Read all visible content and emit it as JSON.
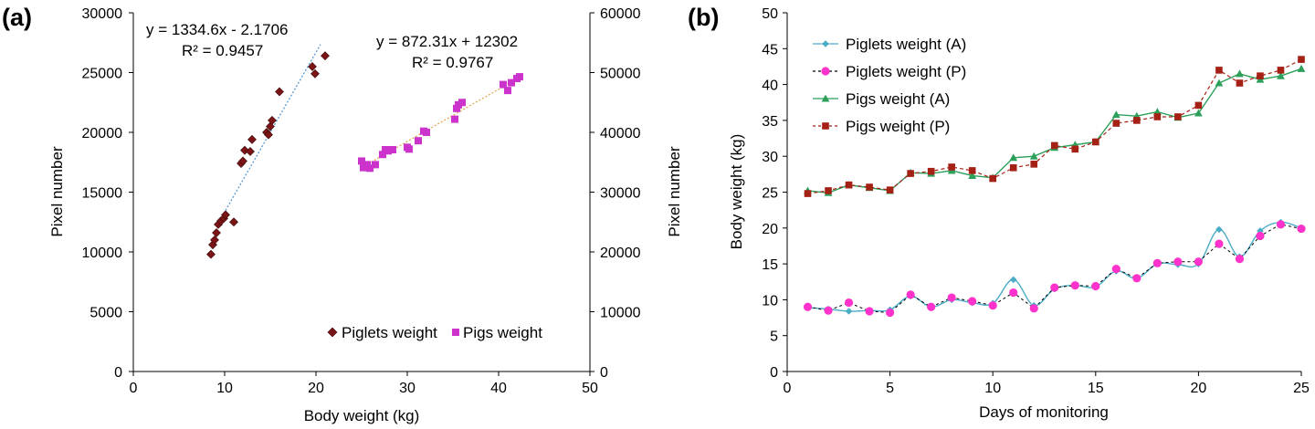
{
  "chart_data": [
    {
      "panel_label": "(a)",
      "type": "scatter",
      "xlabel": "Body weight (kg)",
      "ylabel_left": "Pixel number",
      "ylabel_right": "Pixel number",
      "xlim": [
        0,
        50
      ],
      "ylim_left": [
        0,
        30000
      ],
      "ylim_right": [
        0,
        60000
      ],
      "x_ticks": [
        "0",
        "10",
        "20",
        "30",
        "40",
        "50"
      ],
      "y_left_ticks": [
        "0",
        "5000",
        "10000",
        "15000",
        "20000",
        "25000",
        "30000"
      ],
      "y_right_ticks": [
        "0",
        "10000",
        "20000",
        "30000",
        "40000",
        "50000",
        "60000"
      ],
      "legend_position": "bottom-right",
      "series": [
        {
          "name": "Piglets weight",
          "axis": "left",
          "marker": "diamond",
          "color": "#7B1416",
          "trendline_color": "#5B9BD5",
          "equation": "y = 1334.6x - 2.1706",
          "r2": "R² = 0.9457",
          "trend_x": [
            9.5,
            20.5
          ],
          "points": [
            [
              8.5,
              9800
            ],
            [
              8.7,
              10600
            ],
            [
              8.9,
              11000
            ],
            [
              9.1,
              11600
            ],
            [
              9.3,
              12300
            ],
            [
              9.6,
              12600
            ],
            [
              9.9,
              12800
            ],
            [
              10.1,
              13100
            ],
            [
              11.0,
              12500
            ],
            [
              11.8,
              17400
            ],
            [
              12.0,
              17600
            ],
            [
              12.2,
              18500
            ],
            [
              12.8,
              18400
            ],
            [
              13.0,
              19400
            ],
            [
              14.6,
              20000
            ],
            [
              14.8,
              19800
            ],
            [
              15.0,
              20500
            ],
            [
              15.2,
              21000
            ],
            [
              16.0,
              23400
            ],
            [
              19.6,
              25500
            ],
            [
              19.9,
              24900
            ],
            [
              21.0,
              26400
            ]
          ]
        },
        {
          "name": "Pigs weight",
          "axis": "right",
          "marker": "square",
          "color": "#CC33CC",
          "trendline_color": "#E3A857",
          "equation": "y = 872.31x + 12302",
          "r2": "R² = 0.9767",
          "trend_x": [
            25,
            42
          ],
          "points": [
            [
              25.0,
              35200
            ],
            [
              25.2,
              34100
            ],
            [
              25.6,
              34600
            ],
            [
              25.9,
              34000
            ],
            [
              26.5,
              34600
            ],
            [
              27.3,
              36300
            ],
            [
              27.6,
              37100
            ],
            [
              27.9,
              36900
            ],
            [
              28.4,
              37100
            ],
            [
              30.0,
              37500
            ],
            [
              30.2,
              37200
            ],
            [
              31.2,
              38600
            ],
            [
              31.8,
              40200
            ],
            [
              32.1,
              40000
            ],
            [
              35.2,
              42200
            ],
            [
              35.4,
              44000
            ],
            [
              35.6,
              44600
            ],
            [
              36.0,
              45000
            ],
            [
              40.5,
              48000
            ],
            [
              41.0,
              47000
            ],
            [
              41.4,
              48300
            ],
            [
              42.0,
              49000
            ],
            [
              42.3,
              49300
            ]
          ]
        }
      ]
    },
    {
      "panel_label": "(b)",
      "type": "line",
      "xlabel": "Days of monitoring",
      "ylabel": "Body weight (kg)",
      "xlim": [
        0,
        25
      ],
      "ylim": [
        0,
        50
      ],
      "x_ticks": [
        "0",
        "5",
        "10",
        "15",
        "20",
        "25"
      ],
      "y_ticks": [
        "0",
        "5",
        "10",
        "15",
        "20",
        "25",
        "30",
        "35",
        "40",
        "45",
        "50"
      ],
      "legend_position": "top-left",
      "x": [
        1,
        2,
        3,
        4,
        5,
        6,
        7,
        8,
        9,
        10,
        11,
        12,
        13,
        14,
        15,
        16,
        17,
        18,
        19,
        20,
        21,
        22,
        23,
        24,
        25
      ],
      "series": [
        {
          "name": "Piglets weight (A)",
          "marker": "diamond",
          "color": "#4BACC6",
          "line": "solid",
          "smooth": true,
          "values": [
            8.9,
            8.7,
            8.4,
            8.5,
            8.6,
            10.5,
            9.0,
            10.0,
            9.6,
            9.5,
            12.8,
            9.2,
            11.5,
            12.0,
            11.8,
            14.0,
            13.0,
            15.0,
            14.9,
            15.0,
            19.8,
            16.0,
            19.6,
            20.8,
            20.0
          ]
        },
        {
          "name": "Piglets weight (P)",
          "marker": "circle",
          "color": "#FF33CC",
          "line": "dashed",
          "smooth": false,
          "values": [
            9.0,
            8.5,
            9.6,
            8.4,
            8.2,
            10.7,
            9.0,
            10.3,
            9.8,
            9.2,
            11.0,
            8.8,
            11.7,
            12.0,
            11.9,
            14.3,
            13.0,
            15.1,
            15.3,
            15.3,
            17.8,
            15.7,
            18.9,
            20.5,
            19.9
          ]
        },
        {
          "name": "Pigs weight (A)",
          "marker": "triangle",
          "color": "#2CA05A",
          "line": "solid",
          "smooth": false,
          "values": [
            25.2,
            24.9,
            26.0,
            25.6,
            25.2,
            27.7,
            27.6,
            28.0,
            27.3,
            27.0,
            29.8,
            30.0,
            31.2,
            31.6,
            32.0,
            35.8,
            35.6,
            36.2,
            35.4,
            36.0,
            40.2,
            41.5,
            40.7,
            41.2,
            42.2
          ]
        },
        {
          "name": "Pigs weight (P)",
          "marker": "square",
          "color": "#A52015",
          "line": "dashed",
          "smooth": false,
          "values": [
            24.8,
            25.2,
            26.0,
            25.7,
            25.3,
            27.6,
            27.9,
            28.5,
            28.0,
            26.9,
            28.4,
            28.9,
            31.5,
            31.0,
            32.0,
            34.6,
            35.0,
            35.5,
            35.5,
            37.1,
            42.0,
            40.2,
            41.2,
            42.0,
            43.5
          ]
        }
      ]
    }
  ]
}
